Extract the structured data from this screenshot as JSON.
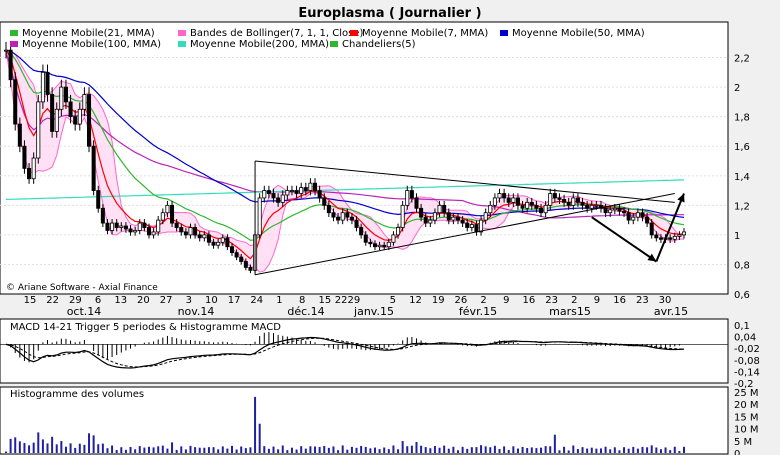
{
  "chart_data": {
    "title": "Europlasma  ( Journalier )",
    "watermark": "© Ariane Software - Axial Finance",
    "background": "#ffffff",
    "price_panel": {
      "type": "candlestick",
      "ylim": [
        0.6,
        2.4
      ],
      "yticks": [
        "2,2",
        "2",
        "1,8",
        "1,6",
        "1,4",
        "1,2",
        "1",
        "0,8",
        "0,6"
      ],
      "ytick_values": [
        2.2,
        2.0,
        1.8,
        1.6,
        1.4,
        1.2,
        1.0,
        0.8,
        0.6
      ],
      "grid": true,
      "legend": [
        {
          "label": "Moyenne Mobile(21, MMA)",
          "color": "#2eb82e"
        },
        {
          "label": "Bandes de Bollinger(7, 1, 1, Close)",
          "color": "#ff66cc"
        },
        {
          "label": "Moyenne Mobile(7, MMA)",
          "color": "#ff0000"
        },
        {
          "label": "Moyenne Mobile(50, MMA)",
          "color": "#0000cc"
        },
        {
          "label": "Moyenne Mobile(100, MMA)",
          "color": "#bb22bb"
        },
        {
          "label": "Moyenne Mobile(200, MMA)",
          "color": "#33ddbb"
        },
        {
          "label": "Chandeliers(5)",
          "color": "#2eb82e"
        }
      ],
      "legend_placement": "top-left",
      "close_series": [
        2.25,
        2.05,
        1.75,
        1.6,
        1.45,
        1.38,
        1.52,
        1.9,
        2.1,
        1.95,
        1.7,
        1.85,
        2.0,
        1.9,
        1.8,
        1.75,
        1.85,
        1.95,
        1.6,
        1.3,
        1.18,
        1.08,
        1.03,
        1.08,
        1.05,
        1.06,
        1.04,
        1.02,
        1.03,
        1.08,
        1.05,
        1.0,
        1.02,
        1.1,
        1.15,
        1.2,
        1.08,
        1.05,
        1.02,
        1.0,
        1.05,
        1.0,
        0.98,
        1.0,
        0.95,
        0.93,
        0.95,
        0.98,
        0.92,
        0.88,
        0.85,
        0.82,
        0.78,
        0.76,
        1.0,
        1.25,
        1.3,
        1.28,
        1.25,
        1.22,
        1.27,
        1.3,
        1.3,
        1.28,
        1.32,
        1.3,
        1.35,
        1.3,
        1.25,
        1.2,
        1.15,
        1.12,
        1.1,
        1.15,
        1.12,
        1.1,
        1.05,
        1.0,
        0.95,
        0.94,
        0.92,
        0.93,
        0.92,
        0.95,
        1.0,
        1.05,
        1.2,
        1.3,
        1.25,
        1.18,
        1.12,
        1.08,
        1.1,
        1.15,
        1.2,
        1.15,
        1.1,
        1.12,
        1.1,
        1.08,
        1.05,
        1.07,
        1.02,
        1.1,
        1.15,
        1.2,
        1.25,
        1.28,
        1.25,
        1.22,
        1.25,
        1.2,
        1.18,
        1.22,
        1.2,
        1.18,
        1.15,
        1.2,
        1.28,
        1.25,
        1.24,
        1.22,
        1.2,
        1.25,
        1.22,
        1.2,
        1.18,
        1.2,
        1.2,
        1.18,
        1.15,
        1.17,
        1.18,
        1.16,
        1.15,
        1.1,
        1.12,
        1.15,
        1.12,
        1.08,
        1.0,
        0.98,
        0.97,
        0.98,
        0.97,
        0.99,
        1.0,
        1.02
      ],
      "annotations": {
        "triangle": {
          "upper": [
            [
              1.5,
              54
            ],
            [
              1.22,
              145
            ]
          ],
          "lower": [
            [
              0.73,
              54
            ],
            [
              1.28,
              145
            ]
          ]
        },
        "arrows": [
          {
            "from": [
              1.12,
              127
            ],
            "to": [
              0.82,
              141
            ]
          },
          {
            "from": [
              0.82,
              141
            ],
            "to": [
              1.28,
              147
            ]
          }
        ]
      }
    },
    "x_axis": {
      "day_labels": [
        "15",
        "22",
        "29",
        "6",
        "13",
        "20",
        "27",
        "3",
        "10",
        "17",
        "24",
        "1",
        "8",
        "15",
        "22",
        "29",
        "5",
        "12",
        "19",
        "26",
        "2",
        "9",
        "16",
        "23",
        "2",
        "9",
        "16",
        "23",
        "30"
      ],
      "day_label_text": [
        "15",
        "22",
        "29",
        "6",
        "13",
        "20",
        "27",
        "3",
        "10",
        "17",
        "24",
        "1",
        "8",
        "15",
        "2229",
        "",
        "5",
        "12",
        "19",
        "26",
        "2",
        "9",
        "16",
        "23",
        "2",
        "9",
        "16",
        "23",
        "30"
      ],
      "month_labels": [
        "oct.14",
        "nov.14",
        "déc.14",
        "janv.15",
        "févr.15",
        "mars15",
        "avr.15"
      ]
    },
    "macd_panel": {
      "title": "MACD 14-21   Trigger 5 periodes & Histogramme MACD",
      "yticks": [
        "0,1",
        "0,04",
        "-0,02",
        "-0,08",
        "-0,14",
        "-0,2"
      ],
      "ylim": [
        -0.2,
        0.1
      ]
    },
    "volume_panel": {
      "title": "Histogramme des volumes",
      "yticks": [
        "25 M",
        "20 M",
        "15 M",
        "10 M",
        "5 M",
        "0"
      ],
      "ylim": [
        0,
        25
      ],
      "bar_color": "#2020a0"
    }
  }
}
